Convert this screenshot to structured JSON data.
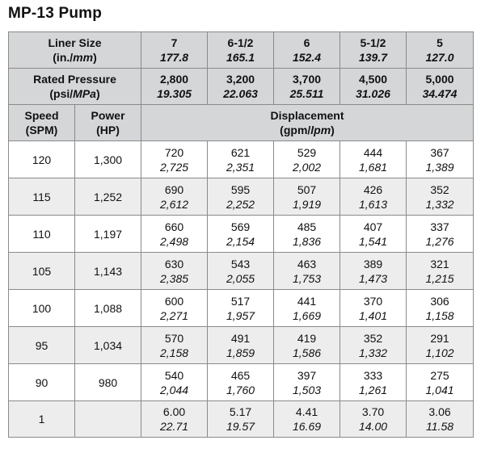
{
  "title": "MP-13 Pump",
  "liner_header": {
    "label": "Liner Size",
    "unit_a": "(in./",
    "unit_b": "mm",
    "unit_c": ")",
    "sizes": [
      {
        "in": "7",
        "mm": "177.8"
      },
      {
        "in": "6-1/2",
        "mm": "165.1"
      },
      {
        "in": "6",
        "mm": "152.4"
      },
      {
        "in": "5-1/2",
        "mm": "139.7"
      },
      {
        "in": "5",
        "mm": "127.0"
      }
    ]
  },
  "pressure_header": {
    "label": "Rated Pressure",
    "unit_a": "(psi/",
    "unit_b": "MPa",
    "unit_c": ")",
    "values": [
      {
        "psi": "2,800",
        "mpa": "19.305"
      },
      {
        "psi": "3,200",
        "mpa": "22.063"
      },
      {
        "psi": "3,700",
        "mpa": "25.511"
      },
      {
        "psi": "4,500",
        "mpa": "31.026"
      },
      {
        "psi": "5,000",
        "mpa": "34.474"
      }
    ]
  },
  "columns": {
    "speed_label": "Speed",
    "speed_unit": "(SPM)",
    "power_label": "Power",
    "power_unit": "(HP)",
    "disp_label": "Displacement",
    "disp_unit_a": "(gpm/",
    "disp_unit_b": "lpm",
    "disp_unit_c": ")"
  },
  "rows": [
    {
      "speed": "120",
      "power": "1,300",
      "cells": [
        [
          "720",
          "2,725"
        ],
        [
          "621",
          "2,351"
        ],
        [
          "529",
          "2,002"
        ],
        [
          "444",
          "1,681"
        ],
        [
          "367",
          "1,389"
        ]
      ]
    },
    {
      "speed": "115",
      "power": "1,252",
      "cells": [
        [
          "690",
          "2,612"
        ],
        [
          "595",
          "2,252"
        ],
        [
          "507",
          "1,919"
        ],
        [
          "426",
          "1,613"
        ],
        [
          "352",
          "1,332"
        ]
      ]
    },
    {
      "speed": "110",
      "power": "1,197",
      "cells": [
        [
          "660",
          "2,498"
        ],
        [
          "569",
          "2,154"
        ],
        [
          "485",
          "1,836"
        ],
        [
          "407",
          "1,541"
        ],
        [
          "337",
          "1,276"
        ]
      ]
    },
    {
      "speed": "105",
      "power": "1,143",
      "cells": [
        [
          "630",
          "2,385"
        ],
        [
          "543",
          "2,055"
        ],
        [
          "463",
          "1,753"
        ],
        [
          "389",
          "1,473"
        ],
        [
          "321",
          "1,215"
        ]
      ]
    },
    {
      "speed": "100",
      "power": "1,088",
      "cells": [
        [
          "600",
          "2,271"
        ],
        [
          "517",
          "1,957"
        ],
        [
          "441",
          "1,669"
        ],
        [
          "370",
          "1,401"
        ],
        [
          "306",
          "1,158"
        ]
      ]
    },
    {
      "speed": "95",
      "power": "1,034",
      "cells": [
        [
          "570",
          "2,158"
        ],
        [
          "491",
          "1,859"
        ],
        [
          "419",
          "1,586"
        ],
        [
          "352",
          "1,332"
        ],
        [
          "291",
          "1,102"
        ]
      ]
    },
    {
      "speed": "90",
      "power": "980",
      "cells": [
        [
          "540",
          "2,044"
        ],
        [
          "465",
          "1,760"
        ],
        [
          "397",
          "1,503"
        ],
        [
          "333",
          "1,261"
        ],
        [
          "275",
          "1,041"
        ]
      ]
    },
    {
      "speed": "1",
      "power": "",
      "cells": [
        [
          "6.00",
          "22.71"
        ],
        [
          "5.17",
          "19.57"
        ],
        [
          "4.41",
          "16.69"
        ],
        [
          "3.70",
          "14.00"
        ],
        [
          "3.06",
          "11.58"
        ]
      ]
    }
  ]
}
